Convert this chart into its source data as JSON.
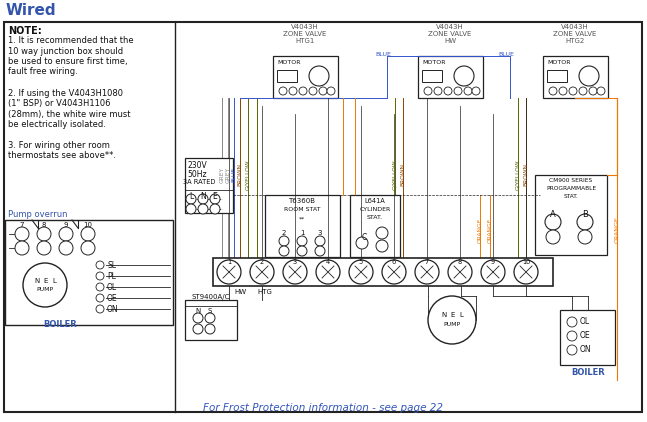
{
  "title": "Wired",
  "bg_color": "#ffffff",
  "fig_w": 6.47,
  "fig_h": 4.22,
  "dpi": 100,
  "note_lines": [
    "NOTE:",
    "1. It is recommended that the",
    "10 way junction box should",
    "be used to ensure first time,",
    "fault free wiring.",
    " ",
    "2. If using the V4043H1080",
    "(1\" BSP) or V4043H1106",
    "(28mm), the white wire must",
    "be electrically isolated.",
    " ",
    "3. For wiring other room",
    "thermostats see above**."
  ],
  "footer_text": "For Frost Protection information - see page 22",
  "wc_grey": "#888888",
  "wc_blue": "#3355cc",
  "wc_brown": "#884400",
  "wc_gyellow": "#6688000",
  "wc_orange": "#ee7700",
  "wc_black": "#222222"
}
